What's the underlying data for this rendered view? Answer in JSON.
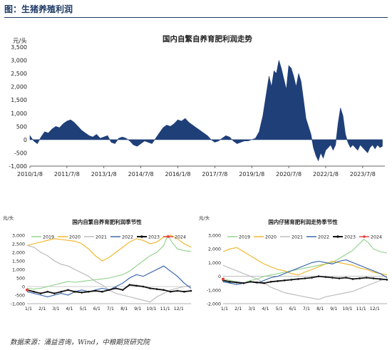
{
  "figure_title": "图：生猪养殖利润",
  "source_text": "数据来源：涌益咨询，Wind，中粮期货研究院",
  "colors": {
    "area": "#1f3f78",
    "s2019": "#8fd18a",
    "s2020": "#f0b323",
    "s2021": "#b8b8b8",
    "s2022": "#2f5fa8",
    "s2023": "#111111",
    "s2024": "#e53935"
  },
  "chart_data": [
    {
      "id": "main",
      "type": "area",
      "title": "国内自繁自养育肥利润走势",
      "ylabel": "元/头",
      "ylim": [
        -1000,
        3500
      ],
      "yticks": [
        -1000,
        -500,
        0,
        500,
        1000,
        1500,
        2000,
        2500,
        3000,
        3500
      ],
      "yticklabels": [
        "-1,000",
        "-500",
        "0",
        "500",
        "1,000",
        "1,500",
        "2,000",
        "2,500",
        "3,000",
        "3,500"
      ],
      "xticklabels": [
        "2010/1/8",
        "2011/7/8",
        "2013/1/8",
        "2014/7/8",
        "2016/1/8",
        "2017/7/8",
        "2019/1/8",
        "2020/7/8",
        "2022/1/8",
        "2023/7/8"
      ],
      "xticks": [
        2010.0,
        2011.5,
        2013.0,
        2014.5,
        2016.0,
        2017.5,
        2019.0,
        2020.5,
        2022.0,
        2023.5
      ],
      "xlim": [
        2010.0,
        2024.4
      ],
      "x": [
        2010.0,
        2010.15,
        2010.3,
        2010.45,
        2010.6,
        2010.75,
        2010.9,
        2011.05,
        2011.2,
        2011.35,
        2011.5,
        2011.65,
        2011.8,
        2011.95,
        2012.1,
        2012.25,
        2012.4,
        2012.55,
        2012.7,
        2012.85,
        2013.0,
        2013.15,
        2013.3,
        2013.45,
        2013.6,
        2013.75,
        2013.9,
        2014.05,
        2014.2,
        2014.35,
        2014.5,
        2014.65,
        2014.8,
        2014.95,
        2015.1,
        2015.25,
        2015.4,
        2015.55,
        2015.7,
        2015.85,
        2016.0,
        2016.15,
        2016.3,
        2016.45,
        2016.6,
        2016.75,
        2016.9,
        2017.05,
        2017.2,
        2017.35,
        2017.5,
        2017.65,
        2017.8,
        2017.95,
        2018.1,
        2018.25,
        2018.4,
        2018.55,
        2018.7,
        2018.85,
        2019.0,
        2019.15,
        2019.3,
        2019.45,
        2019.6,
        2019.7,
        2019.8,
        2019.9,
        2020.0,
        2020.1,
        2020.2,
        2020.3,
        2020.4,
        2020.5,
        2020.6,
        2020.7,
        2020.8,
        2020.9,
        2021.0,
        2021.1,
        2021.2,
        2021.3,
        2021.4,
        2021.5,
        2021.6,
        2021.7,
        2021.8,
        2021.9,
        2022.0,
        2022.1,
        2022.2,
        2022.3,
        2022.4,
        2022.5,
        2022.6,
        2022.7,
        2022.8,
        2022.9,
        2023.0,
        2023.1,
        2023.2,
        2023.3,
        2023.4,
        2023.5,
        2023.6,
        2023.7,
        2023.8,
        2023.9,
        2024.0,
        2024.1,
        2024.2,
        2024.3
      ],
      "values": [
        150,
        -50,
        -150,
        100,
        300,
        250,
        400,
        500,
        450,
        600,
        700,
        750,
        650,
        500,
        350,
        250,
        150,
        100,
        200,
        50,
        100,
        150,
        -100,
        -150,
        50,
        100,
        50,
        -50,
        -200,
        -250,
        -150,
        -50,
        -100,
        -150,
        50,
        250,
        450,
        550,
        500,
        600,
        750,
        700,
        800,
        650,
        550,
        450,
        350,
        250,
        150,
        0,
        -100,
        -50,
        50,
        150,
        100,
        -50,
        -150,
        -100,
        -50,
        -50,
        0,
        50,
        300,
        900,
        1800,
        2400,
        2000,
        2600,
        2500,
        3000,
        2700,
        2300,
        1900,
        2800,
        2700,
        2400,
        2000,
        2500,
        2200,
        1500,
        800,
        500,
        200,
        -300,
        -600,
        -800,
        -500,
        -700,
        -400,
        -300,
        -200,
        -400,
        -200,
        600,
        1200,
        900,
        200,
        -100,
        -300,
        -200,
        -300,
        -400,
        -200,
        -300,
        -400,
        -500,
        -300,
        -200,
        -350,
        -200,
        -300,
        -250
      ]
    },
    {
      "id": "left",
      "type": "line",
      "title": "国内自繁自养育肥利润季节性",
      "ylabel": "元/头",
      "ylim": [
        -1000,
        3000
      ],
      "yticks": [
        -1000,
        -500,
        0,
        500,
        1000,
        1500,
        2000,
        2500,
        3000
      ],
      "yticklabels": [
        "-1,000",
        "-500",
        "0",
        "500",
        "1,000",
        "1,500",
        "2,000",
        "2,500",
        "3,000"
      ],
      "categories": [
        "1/1",
        "2/1",
        "3/1",
        "4/1",
        "5/1",
        "6/1",
        "7/1",
        "8/1",
        "9/1",
        "10/1",
        "11/1",
        "12/1"
      ],
      "xlim": [
        0,
        12
      ],
      "series": [
        {
          "name": "2019",
          "color_key": "s2019",
          "x": [
            0,
            0.5,
            1,
            1.5,
            2,
            2.5,
            3,
            3.5,
            4,
            4.5,
            5,
            5.5,
            6,
            6.5,
            7,
            7.5,
            8,
            8.5,
            9,
            9.5,
            10,
            10.3,
            10.6,
            11,
            11.5,
            12
          ],
          "values": [
            -100,
            -150,
            -100,
            0,
            100,
            200,
            300,
            250,
            300,
            350,
            400,
            450,
            500,
            600,
            700,
            900,
            1200,
            1500,
            1800,
            2000,
            2400,
            3000,
            2600,
            2200,
            2100,
            2050
          ]
        },
        {
          "name": "2020",
          "color_key": "s2020",
          "x": [
            0,
            0.5,
            1,
            1.5,
            2,
            2.5,
            3,
            3.5,
            4,
            4.5,
            5,
            5.5,
            6,
            6.5,
            7,
            7.5,
            8,
            8.5,
            9,
            9.5,
            10,
            10.5,
            11,
            11.5,
            12
          ],
          "values": [
            2400,
            2500,
            2600,
            2700,
            2800,
            2750,
            2700,
            2650,
            2500,
            2200,
            1800,
            1500,
            1700,
            2000,
            2300,
            2600,
            2800,
            2700,
            2500,
            2600,
            2900,
            3000,
            2800,
            2500,
            2300
          ]
        },
        {
          "name": "2021",
          "color_key": "s2021",
          "x": [
            0,
            0.5,
            1,
            1.5,
            2,
            2.5,
            3,
            3.5,
            4,
            4.5,
            5,
            5.5,
            6,
            6.5,
            7,
            7.5,
            8,
            8.5,
            9,
            9.5,
            10,
            10.5,
            11,
            11.5,
            12
          ],
          "values": [
            2400,
            2300,
            2000,
            1800,
            1500,
            1300,
            1200,
            1000,
            800,
            600,
            300,
            100,
            -200,
            -400,
            -500,
            -600,
            -700,
            -800,
            -900,
            -600,
            -400,
            -200,
            -100,
            0,
            50
          ]
        },
        {
          "name": "2022",
          "color_key": "s2022",
          "x": [
            0,
            0.5,
            1,
            1.5,
            2,
            2.5,
            3,
            3.5,
            4,
            4.5,
            5,
            5.5,
            6,
            6.5,
            7,
            7.5,
            8,
            8.5,
            9,
            9.5,
            10,
            10.5,
            11,
            11.5,
            12
          ],
          "values": [
            -300,
            -400,
            -500,
            -600,
            -500,
            -400,
            -500,
            -300,
            -200,
            -300,
            -200,
            -100,
            -200,
            0,
            200,
            500,
            700,
            600,
            800,
            1000,
            1200,
            900,
            600,
            200,
            -100
          ]
        },
        {
          "name": "2023",
          "color_key": "s2023",
          "x": [
            0,
            0.5,
            1,
            1.5,
            2,
            2.5,
            3,
            3.5,
            4,
            4.5,
            5,
            5.5,
            6,
            6.5,
            7,
            7.5,
            8,
            8.5,
            9,
            9.5,
            10,
            10.5,
            11,
            11.5,
            12
          ],
          "values": [
            -200,
            -300,
            -400,
            -300,
            -400,
            -300,
            -200,
            -300,
            -350,
            -300,
            -250,
            -300,
            -200,
            -100,
            -200,
            100,
            50,
            0,
            -100,
            -150,
            -200,
            -300,
            -250,
            -300,
            -250
          ]
        },
        {
          "name": "2024",
          "color_key": "s2024",
          "x": [
            0
          ],
          "values": [
            -200
          ]
        }
      ]
    },
    {
      "id": "right",
      "type": "line",
      "title": "国内仔猪育肥利润走势季节性",
      "ylabel": "元/头",
      "ylim": [
        -2000,
        3000
      ],
      "yticks": [
        -2000,
        -1000,
        0,
        1000,
        2000,
        3000
      ],
      "yticklabels": [
        "-2,000",
        "-1,000",
        "0",
        "1,000",
        "2,000",
        "3,000"
      ],
      "categories": [
        "1/1",
        "2/1",
        "3/1",
        "4/1",
        "5/1",
        "6/1",
        "7/1",
        "8/1",
        "9/1",
        "10/1",
        "11/1",
        "12/1"
      ],
      "xlim": [
        0,
        12
      ],
      "series": [
        {
          "name": "2019",
          "color_key": "s2019",
          "x": [
            0,
            0.5,
            1,
            1.5,
            2,
            2.5,
            3,
            3.5,
            4,
            4.5,
            5,
            5.5,
            6,
            6.5,
            7,
            7.5,
            8,
            8.5,
            9,
            9.5,
            10,
            10.3,
            10.6,
            11,
            11.5,
            12
          ],
          "values": [
            -200,
            -300,
            -400,
            -500,
            -300,
            -200,
            0,
            100,
            200,
            300,
            400,
            500,
            600,
            700,
            800,
            900,
            1000,
            1300,
            1600,
            1900,
            2400,
            2700,
            2500,
            2000,
            1800,
            1700
          ]
        },
        {
          "name": "2020",
          "color_key": "s2020",
          "x": [
            0,
            0.5,
            1,
            1.5,
            2,
            2.5,
            3,
            3.5,
            4,
            4.5,
            5,
            5.5,
            6,
            6.5,
            7,
            7.5,
            8,
            8.5,
            9,
            9.5,
            10,
            10.5,
            11,
            11.5,
            12
          ],
          "values": [
            1800,
            2000,
            2100,
            1800,
            1500,
            1200,
            900,
            700,
            500,
            400,
            200,
            100,
            300,
            500,
            700,
            900,
            1100,
            1000,
            900,
            800,
            600,
            500,
            300,
            200,
            100
          ]
        },
        {
          "name": "2021",
          "color_key": "s2021",
          "x": [
            0,
            0.5,
            1,
            1.5,
            2,
            2.5,
            3,
            3.5,
            4,
            4.5,
            5,
            5.5,
            6,
            6.5,
            7,
            7.5,
            8,
            8.5,
            9,
            9.5,
            10,
            10.5,
            11,
            11.5,
            12
          ],
          "values": [
            800,
            600,
            400,
            200,
            0,
            -200,
            -500,
            -800,
            -1000,
            -1200,
            -1300,
            -1400,
            -1500,
            -1600,
            -1700,
            -1500,
            -1400,
            -1300,
            -1200,
            -1100,
            -900,
            -700,
            -500,
            -300,
            -200
          ]
        },
        {
          "name": "2022",
          "color_key": "s2022",
          "x": [
            0,
            0.5,
            1,
            1.5,
            2,
            2.5,
            3,
            3.5,
            4,
            4.5,
            5,
            5.5,
            6,
            6.5,
            7,
            7.5,
            8,
            8.5,
            9,
            9.5,
            10,
            10.5,
            11,
            11.5,
            12
          ],
          "values": [
            -400,
            -500,
            -600,
            -500,
            -400,
            -500,
            -300,
            -100,
            0,
            200,
            400,
            600,
            800,
            1000,
            1100,
            1000,
            900,
            1100,
            1200,
            1000,
            800,
            600,
            400,
            200,
            -100
          ]
        },
        {
          "name": "2023",
          "color_key": "s2023",
          "x": [
            0,
            0.5,
            1,
            1.5,
            2,
            2.5,
            3,
            3.5,
            4,
            4.5,
            5,
            5.5,
            6,
            6.5,
            7,
            7.5,
            8,
            8.5,
            9,
            9.5,
            10,
            10.5,
            11,
            11.5,
            12
          ],
          "values": [
            -300,
            -400,
            -450,
            -500,
            -400,
            -450,
            -500,
            -400,
            -350,
            -300,
            -250,
            -200,
            -150,
            -100,
            0,
            -50,
            -100,
            -150,
            -100,
            -200,
            -150,
            -100,
            -150,
            -200,
            -250
          ]
        },
        {
          "name": "2024",
          "color_key": "s2024",
          "x": [
            0
          ],
          "values": [
            -200
          ]
        }
      ]
    }
  ]
}
